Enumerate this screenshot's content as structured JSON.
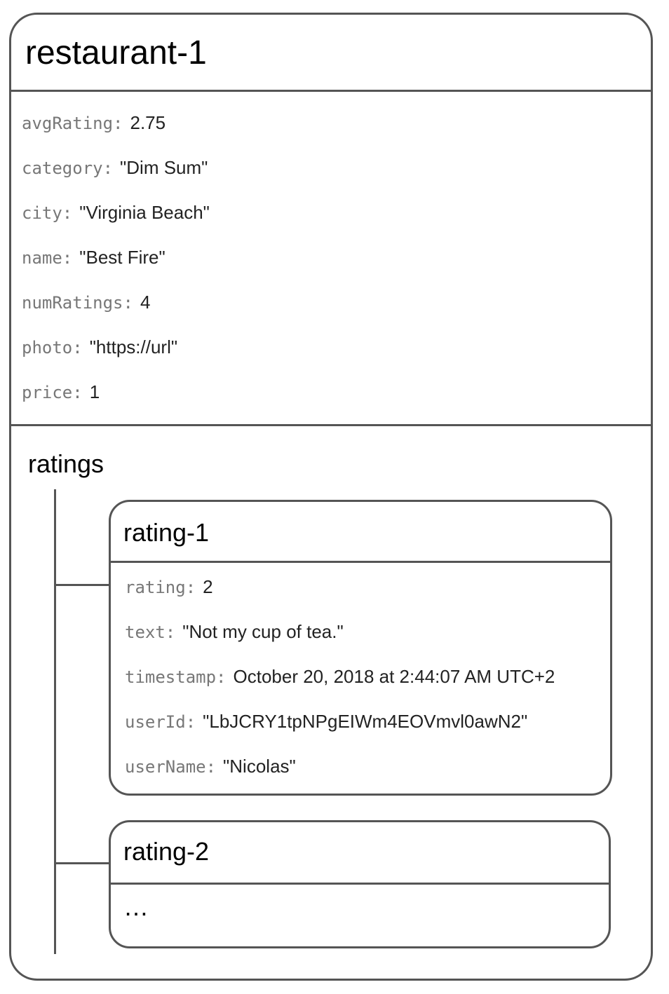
{
  "document": {
    "title": "restaurant-1",
    "fields": [
      {
        "key": "avgRating:",
        "value": "2.75"
      },
      {
        "key": "category:",
        "value": "\"Dim Sum\""
      },
      {
        "key": "city:",
        "value": "\"Virginia Beach\""
      },
      {
        "key": "name:",
        "value": "\"Best Fire\""
      },
      {
        "key": "numRatings:",
        "value": "4"
      },
      {
        "key": "photo:",
        "value": "\"https://url\""
      },
      {
        "key": "price:",
        "value": "1"
      }
    ],
    "subcollection": {
      "title": "ratings",
      "documents": [
        {
          "title": "rating-1",
          "fields": [
            {
              "key": "rating:",
              "value": "2"
            },
            {
              "key": "text:",
              "value": "\"Not my cup of tea.\""
            },
            {
              "key": "timestamp:",
              "value": "October 20, 2018 at 2:44:07 AM UTC+2"
            },
            {
              "key": "userId:",
              "value": "\"LbJCRY1tpNPgEIWm4EOVmvl0awN2\""
            },
            {
              "key": "userName:",
              "value": "\"Nicolas\""
            }
          ]
        },
        {
          "title": "rating-2",
          "ellipsis": "…"
        }
      ]
    }
  },
  "colors": {
    "border": "#555555",
    "key": "#777777",
    "value": "#222222"
  }
}
